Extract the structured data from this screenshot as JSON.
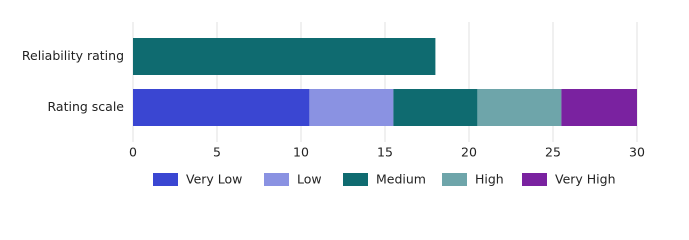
{
  "chart_data": {
    "type": "stacked-barh",
    "categories": [
      "Reliability rating",
      "Rating scale"
    ],
    "series": [
      {
        "name": "Very Low",
        "color": "#3a46d2",
        "values": [
          null,
          10.5
        ]
      },
      {
        "name": "Low",
        "color": "#8a92e2",
        "values": [
          null,
          5
        ]
      },
      {
        "name": "Medium",
        "color": "#0f6b70",
        "values": [
          18,
          5
        ]
      },
      {
        "name": "High",
        "color": "#6ea5aa",
        "values": [
          null,
          5
        ]
      },
      {
        "name": "Very High",
        "color": "#7a22a0",
        "values": [
          null,
          4.5
        ]
      }
    ],
    "xlim": [
      0,
      30
    ],
    "xticks": [
      0,
      5,
      10,
      15,
      20,
      25,
      30
    ],
    "grid": true,
    "legend": "bottom"
  }
}
